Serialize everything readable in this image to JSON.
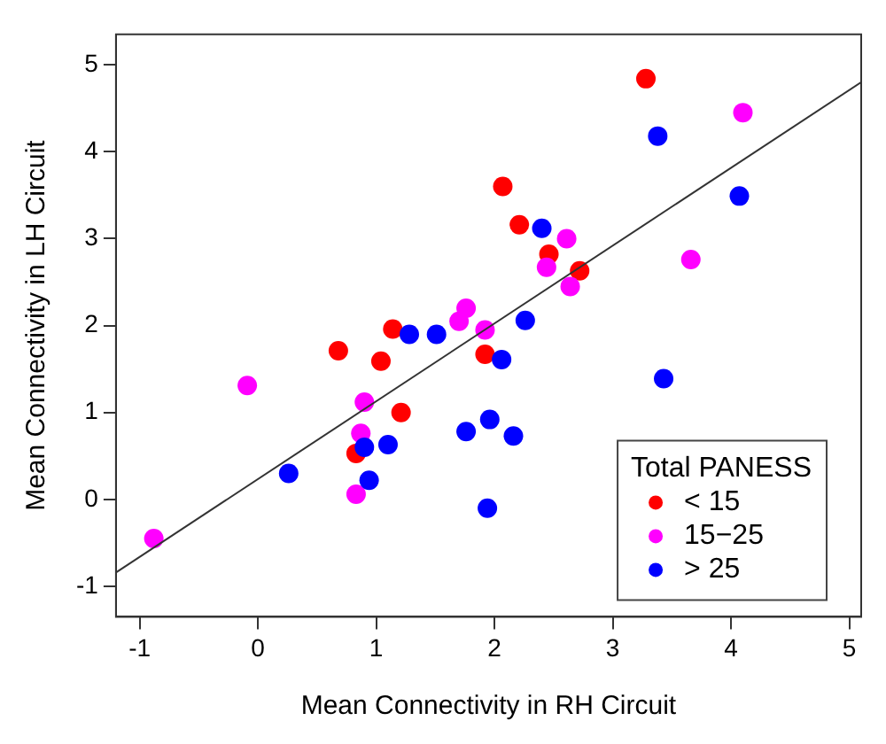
{
  "chart_data": {
    "type": "scatter",
    "xlabel": "Mean Connectivity in RH Circuit",
    "ylabel": "Mean Connectivity in LH Circuit",
    "legend_title": "Total PANESS",
    "legend": "bottom right",
    "grid": false,
    "marker": "circle",
    "xlim": [
      -1.2,
      5.1
    ],
    "ylim": [
      -1.35,
      5.35
    ],
    "xticks": [
      -1,
      0,
      1,
      2,
      3,
      4,
      5
    ],
    "yticks": [
      -1,
      0,
      1,
      2,
      3,
      4,
      5
    ],
    "series": [
      {
        "name": "< 15",
        "color": "#ff0000",
        "x": [
          3.28,
          2.07,
          2.21,
          2.46,
          2.72,
          1.14,
          0.68,
          1.04,
          1.21,
          0.83,
          1.92
        ],
        "values": [
          4.84,
          3.6,
          3.16,
          2.82,
          2.63,
          1.96,
          1.71,
          1.59,
          1.0,
          0.53,
          1.67
        ]
      },
      {
        "name": "15−25",
        "color": "#ff00ff",
        "x": [
          4.1,
          2.61,
          2.44,
          2.64,
          3.66,
          1.92,
          1.76,
          1.7,
          -0.09,
          0.9,
          0.87,
          0.83,
          -0.88
        ],
        "values": [
          4.45,
          3.0,
          2.67,
          2.45,
          2.76,
          1.95,
          2.2,
          2.05,
          1.31,
          1.12,
          0.76,
          0.06,
          -0.45
        ]
      },
      {
        "name": "> 25",
        "color": "#0000ff",
        "x": [
          3.38,
          4.07,
          2.4,
          2.26,
          2.06,
          3.43,
          1.96,
          2.16,
          1.94,
          1.28,
          1.51,
          1.76,
          0.9,
          1.1,
          0.94,
          0.26
        ],
        "values": [
          4.18,
          3.49,
          3.12,
          2.06,
          1.61,
          1.39,
          0.92,
          0.73,
          -0.1,
          1.9,
          1.9,
          0.78,
          0.6,
          0.63,
          0.22,
          0.3
        ]
      },
      {
        "type": "line",
        "color": "#333333",
        "marker": "none",
        "x": [
          -1.2,
          5.1
        ],
        "values": [
          -0.84,
          4.8
        ]
      }
    ]
  }
}
